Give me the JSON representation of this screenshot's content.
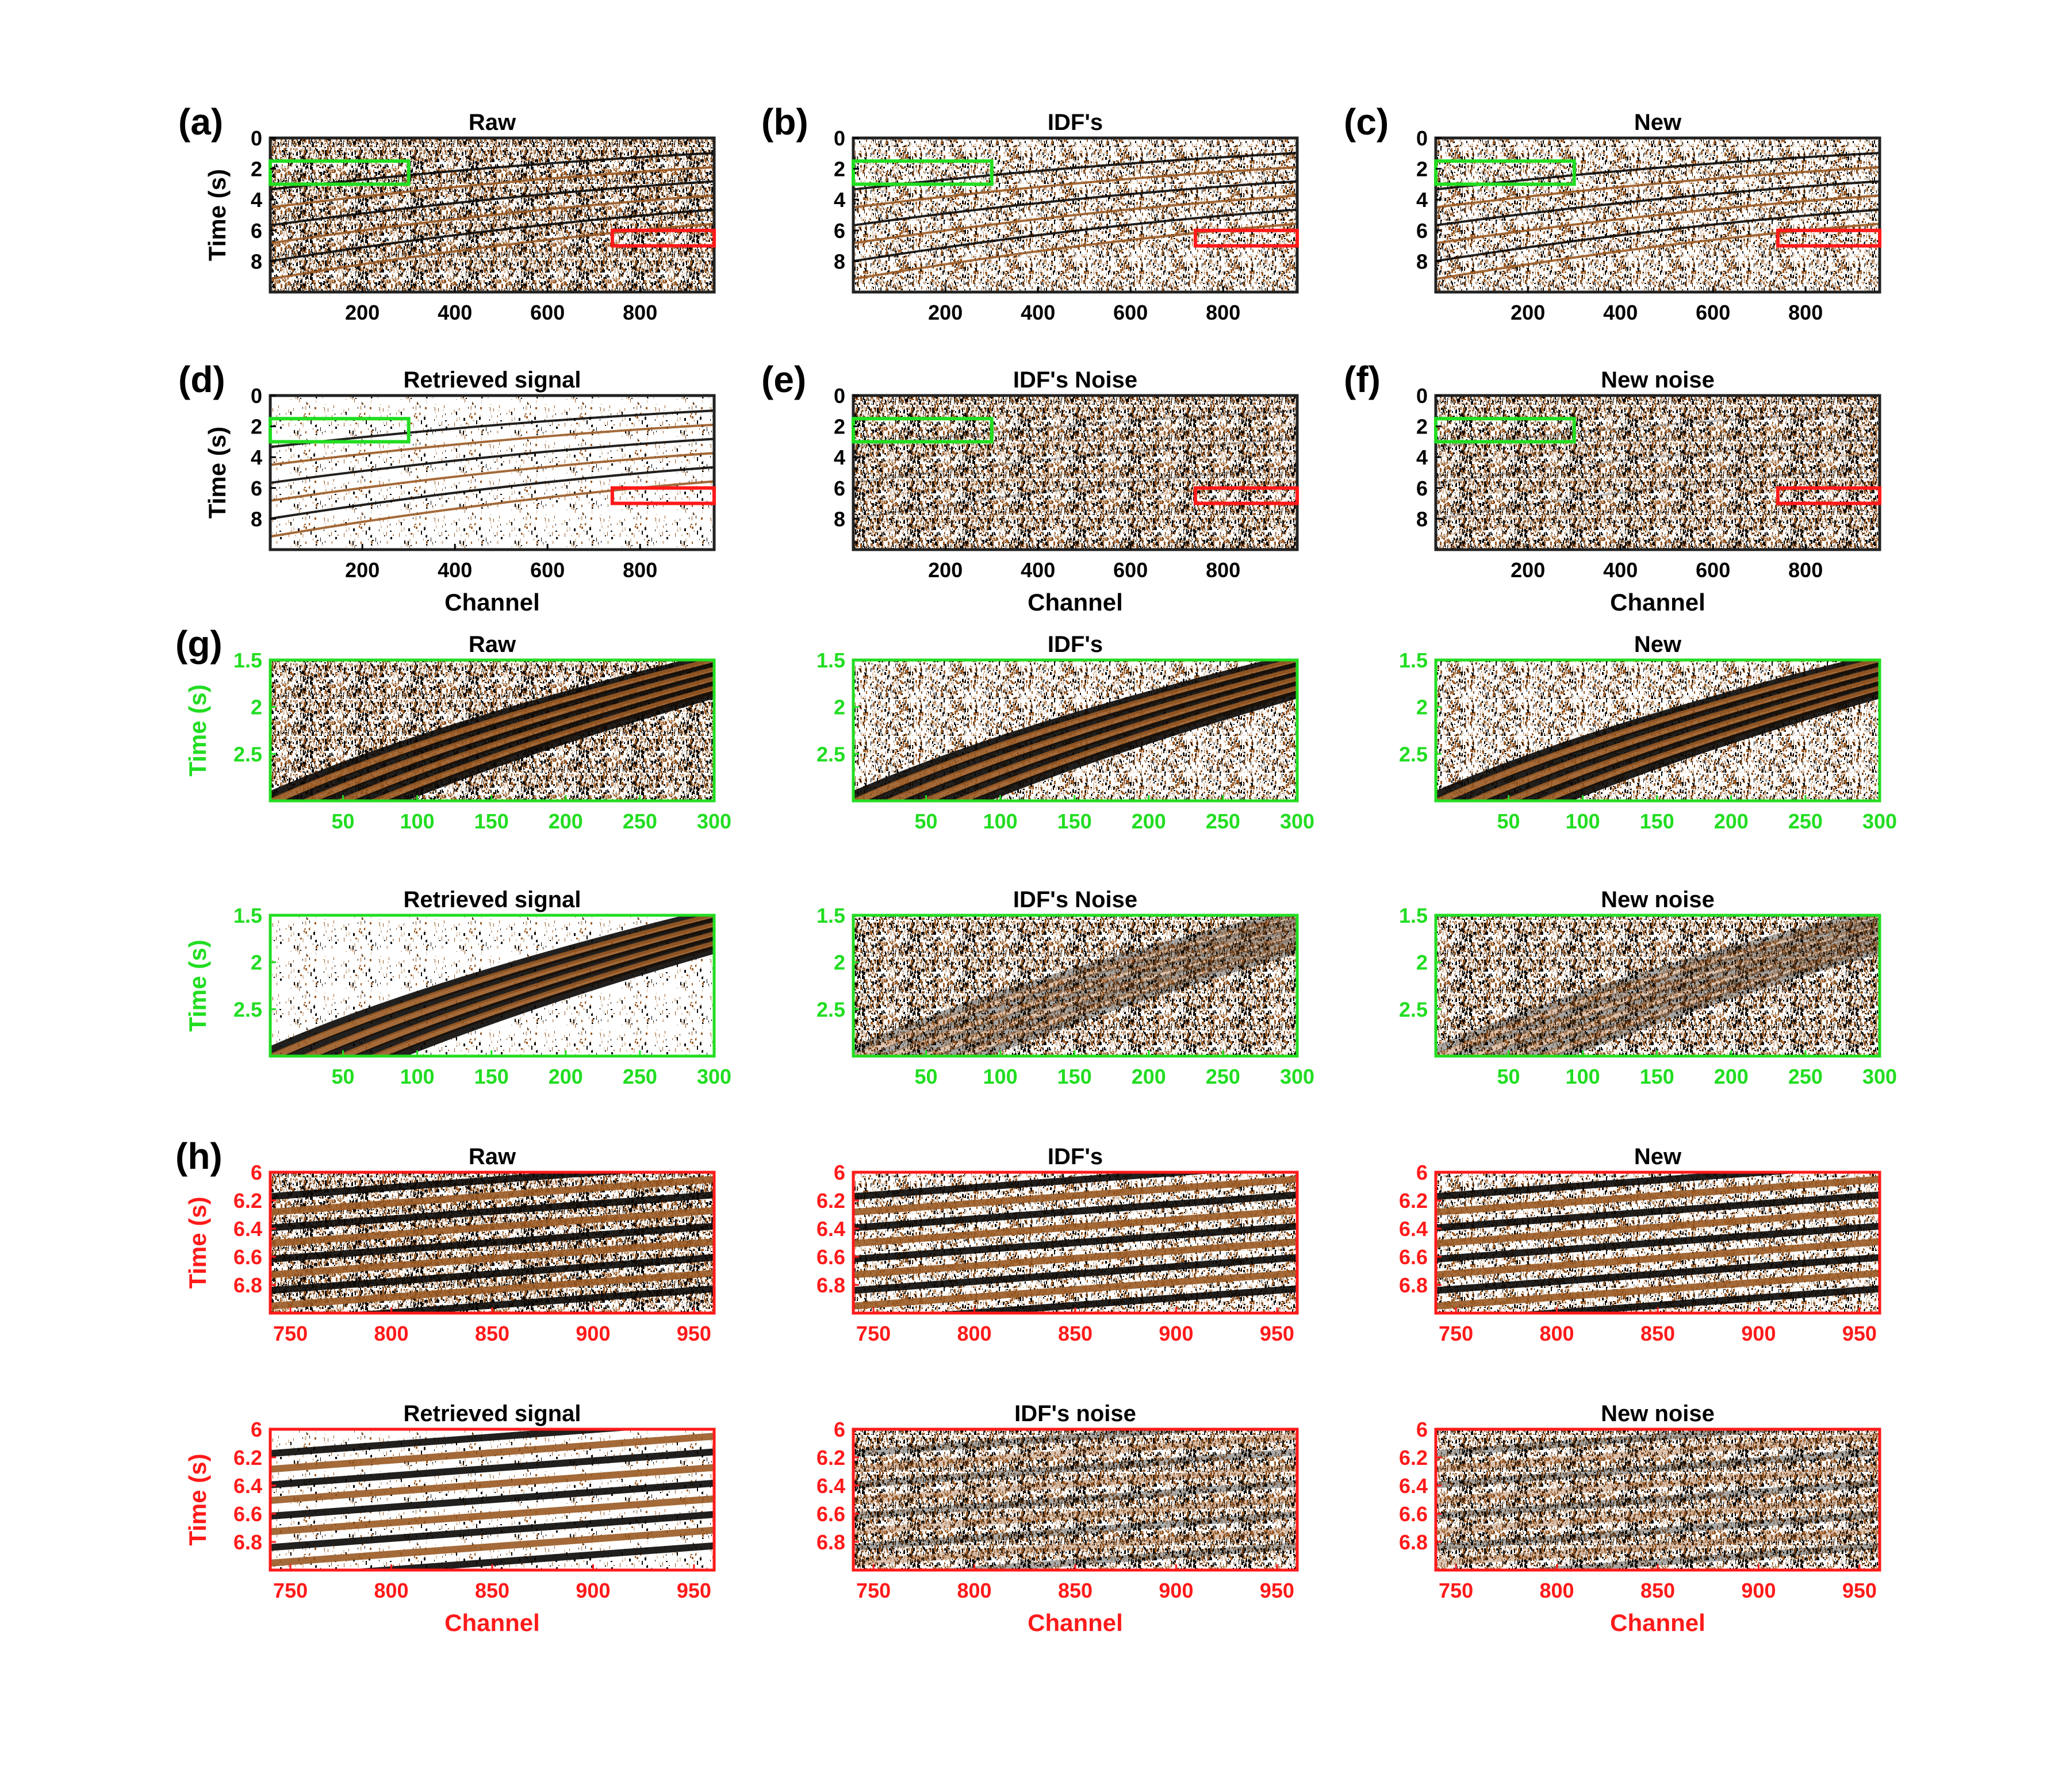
{
  "colors": {
    "green": "#22dd22",
    "red": "#ff1a1a",
    "black": "#222222",
    "seismic_dark": "#0a0806",
    "seismic_brown": "#9a5a24",
    "seismic_white": "#ffffff"
  },
  "panel_labels": [
    "(a)",
    "(b)",
    "(c)",
    "(d)",
    "(e)",
    "(f)",
    "(g)",
    "(h)"
  ],
  "chart_data": [
    {
      "type": "heatmap",
      "label": "(a)",
      "title": "Raw",
      "ylabel": "Time (s)",
      "xlabel": "",
      "xticks": [
        "200",
        "400",
        "600",
        "800"
      ],
      "yticks": [
        "0",
        "2",
        "4",
        "6",
        "8"
      ],
      "xlim": [
        1,
        960
      ],
      "ylim": [
        0,
        10
      ],
      "frame": "black",
      "highlight_boxes": [
        {
          "color": "green",
          "x": [
            1,
            300
          ],
          "y": [
            1.5,
            3
          ]
        },
        {
          "color": "red",
          "x": [
            740,
            960
          ],
          "y": [
            6,
            7
          ]
        }
      ]
    },
    {
      "type": "heatmap",
      "label": "(b)",
      "title": "IDF's",
      "ylabel": "",
      "xlabel": "",
      "xticks": [
        "200",
        "400",
        "600",
        "800"
      ],
      "yticks": [
        "0",
        "2",
        "4",
        "6",
        "8"
      ],
      "xlim": [
        1,
        960
      ],
      "ylim": [
        0,
        10
      ],
      "frame": "black",
      "highlight_boxes": [
        {
          "color": "green",
          "x": [
            1,
            300
          ],
          "y": [
            1.5,
            3
          ]
        },
        {
          "color": "red",
          "x": [
            740,
            960
          ],
          "y": [
            6,
            7
          ]
        }
      ]
    },
    {
      "type": "heatmap",
      "label": "(c)",
      "title": "New",
      "ylabel": "",
      "xlabel": "",
      "xticks": [
        "200",
        "400",
        "600",
        "800"
      ],
      "yticks": [
        "0",
        "2",
        "4",
        "6",
        "8"
      ],
      "xlim": [
        1,
        960
      ],
      "ylim": [
        0,
        10
      ],
      "frame": "black",
      "highlight_boxes": [
        {
          "color": "green",
          "x": [
            1,
            300
          ],
          "y": [
            1.5,
            3
          ]
        },
        {
          "color": "red",
          "x": [
            740,
            960
          ],
          "y": [
            6,
            7
          ]
        }
      ]
    },
    {
      "type": "heatmap",
      "label": "(d)",
      "title": "Retrieved signal",
      "ylabel": "Time (s)",
      "xlabel": "Channel",
      "xticks": [
        "200",
        "400",
        "600",
        "800"
      ],
      "yticks": [
        "0",
        "2",
        "4",
        "6",
        "8"
      ],
      "xlim": [
        1,
        960
      ],
      "ylim": [
        0,
        10
      ],
      "frame": "black",
      "highlight_boxes": [
        {
          "color": "green",
          "x": [
            1,
            300
          ],
          "y": [
            1.5,
            3
          ]
        },
        {
          "color": "red",
          "x": [
            740,
            960
          ],
          "y": [
            6,
            7
          ]
        }
      ]
    },
    {
      "type": "heatmap",
      "label": "(e)",
      "title": "IDF's Noise",
      "ylabel": "",
      "xlabel": "Channel",
      "xticks": [
        "200",
        "400",
        "600",
        "800"
      ],
      "yticks": [
        "0",
        "2",
        "4",
        "6",
        "8"
      ],
      "xlim": [
        1,
        960
      ],
      "ylim": [
        0,
        10
      ],
      "frame": "black",
      "highlight_boxes": [
        {
          "color": "green",
          "x": [
            1,
            300
          ],
          "y": [
            1.5,
            3
          ]
        },
        {
          "color": "red",
          "x": [
            740,
            960
          ],
          "y": [
            6,
            7
          ]
        }
      ]
    },
    {
      "type": "heatmap",
      "label": "(f)",
      "title": "New noise",
      "ylabel": "",
      "xlabel": "Channel",
      "xticks": [
        "200",
        "400",
        "600",
        "800"
      ],
      "yticks": [
        "0",
        "2",
        "4",
        "6",
        "8"
      ],
      "xlim": [
        1,
        960
      ],
      "ylim": [
        0,
        10
      ],
      "frame": "black",
      "highlight_boxes": [
        {
          "color": "green",
          "x": [
            1,
            300
          ],
          "y": [
            1.5,
            3
          ]
        },
        {
          "color": "red",
          "x": [
            740,
            960
          ],
          "y": [
            6,
            7
          ]
        }
      ]
    },
    {
      "type": "heatmap",
      "label": "(g)",
      "title": "Raw",
      "ylabel": "Time (s)",
      "xlabel": "",
      "xticks": [
        "50",
        "100",
        "150",
        "200",
        "250",
        "300"
      ],
      "yticks": [
        "1.5",
        "2",
        "2.5"
      ],
      "xlim": [
        1,
        300
      ],
      "ylim": [
        1.5,
        3
      ],
      "frame": "green"
    },
    {
      "type": "heatmap",
      "label": "",
      "title": "IDF's",
      "ylabel": "",
      "xlabel": "",
      "xticks": [
        "50",
        "100",
        "150",
        "200",
        "250",
        "300"
      ],
      "yticks": [
        "1.5",
        "2",
        "2.5"
      ],
      "xlim": [
        1,
        300
      ],
      "ylim": [
        1.5,
        3
      ],
      "frame": "green"
    },
    {
      "type": "heatmap",
      "label": "",
      "title": "New",
      "ylabel": "",
      "xlabel": "",
      "xticks": [
        "50",
        "100",
        "150",
        "200",
        "250",
        "300"
      ],
      "yticks": [
        "1.5",
        "2",
        "2.5"
      ],
      "xlim": [
        1,
        300
      ],
      "ylim": [
        1.5,
        3
      ],
      "frame": "green"
    },
    {
      "type": "heatmap",
      "label": "",
      "title": "Retrieved signal",
      "ylabel": "Time (s)",
      "xlabel": "",
      "xticks": [
        "50",
        "100",
        "150",
        "200",
        "250",
        "300"
      ],
      "yticks": [
        "1.5",
        "2",
        "2.5"
      ],
      "xlim": [
        1,
        300
      ],
      "ylim": [
        1.5,
        3
      ],
      "frame": "green"
    },
    {
      "type": "heatmap",
      "label": "",
      "title": "IDF's Noise",
      "ylabel": "",
      "xlabel": "",
      "xticks": [
        "50",
        "100",
        "150",
        "200",
        "250",
        "300"
      ],
      "yticks": [
        "1.5",
        "2",
        "2.5"
      ],
      "xlim": [
        1,
        300
      ],
      "ylim": [
        1.5,
        3
      ],
      "frame": "green"
    },
    {
      "type": "heatmap",
      "label": "",
      "title": "New noise",
      "ylabel": "",
      "xlabel": "",
      "xticks": [
        "50",
        "100",
        "150",
        "200",
        "250",
        "300"
      ],
      "yticks": [
        "1.5",
        "2",
        "2.5"
      ],
      "xlim": [
        1,
        300
      ],
      "ylim": [
        1.5,
        3
      ],
      "frame": "green"
    },
    {
      "type": "heatmap",
      "label": "(h)",
      "title": "Raw",
      "ylabel": "Time (s)",
      "xlabel": "",
      "xticks": [
        "750",
        "800",
        "850",
        "900",
        "950"
      ],
      "yticks": [
        "6",
        "6.2",
        "6.4",
        "6.6",
        "6.8"
      ],
      "xlim": [
        740,
        960
      ],
      "ylim": [
        6,
        7
      ],
      "frame": "red"
    },
    {
      "type": "heatmap",
      "label": "",
      "title": "IDF's",
      "ylabel": "",
      "xlabel": "",
      "xticks": [
        "750",
        "800",
        "850",
        "900",
        "950"
      ],
      "yticks": [
        "6",
        "6.2",
        "6.4",
        "6.6",
        "6.8"
      ],
      "xlim": [
        740,
        960
      ],
      "ylim": [
        6,
        7
      ],
      "frame": "red"
    },
    {
      "type": "heatmap",
      "label": "",
      "title": "New",
      "ylabel": "",
      "xlabel": "",
      "xticks": [
        "750",
        "800",
        "850",
        "900",
        "950"
      ],
      "yticks": [
        "6",
        "6.2",
        "6.4",
        "6.6",
        "6.8"
      ],
      "xlim": [
        740,
        960
      ],
      "ylim": [
        6,
        7
      ],
      "frame": "red"
    },
    {
      "type": "heatmap",
      "label": "",
      "title": "Retrieved signal",
      "ylabel": "Time (s)",
      "xlabel": "Channel",
      "xticks": [
        "750",
        "800",
        "850",
        "900",
        "950"
      ],
      "yticks": [
        "6",
        "6.2",
        "6.4",
        "6.6",
        "6.8"
      ],
      "xlim": [
        740,
        960
      ],
      "ylim": [
        6,
        7
      ],
      "frame": "red"
    },
    {
      "type": "heatmap",
      "label": "",
      "title": "IDF's noise",
      "ylabel": "",
      "xlabel": "Channel",
      "xticks": [
        "750",
        "800",
        "850",
        "900",
        "950"
      ],
      "yticks": [
        "6",
        "6.2",
        "6.4",
        "6.6",
        "6.8"
      ],
      "xlim": [
        740,
        960
      ],
      "ylim": [
        6,
        7
      ],
      "frame": "red"
    },
    {
      "type": "heatmap",
      "label": "",
      "title": "New noise",
      "ylabel": "",
      "xlabel": "Channel",
      "xticks": [
        "750",
        "800",
        "850",
        "900",
        "950"
      ],
      "yticks": [
        "6",
        "6.2",
        "6.4",
        "6.6",
        "6.8"
      ],
      "xlim": [
        740,
        960
      ],
      "ylim": [
        6,
        7
      ],
      "frame": "red"
    }
  ]
}
